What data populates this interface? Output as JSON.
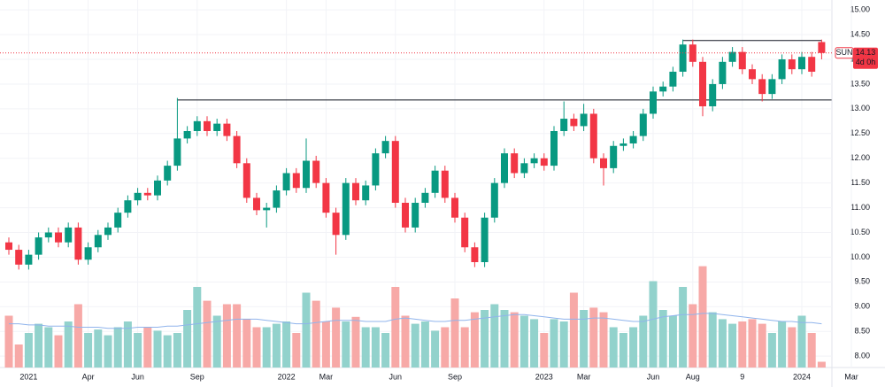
{
  "chart_data": {
    "type": "candlestick",
    "categories": [
      null,
      null,
      "2021",
      null,
      null,
      null,
      null,
      null,
      "Apr",
      null,
      null,
      null,
      null,
      "Jun",
      null,
      null,
      null,
      null,
      null,
      "Sep",
      null,
      null,
      null,
      null,
      null,
      null,
      null,
      null,
      "2022",
      null,
      null,
      null,
      "Mar",
      null,
      null,
      null,
      null,
      null,
      null,
      "Jun",
      null,
      null,
      null,
      null,
      null,
      "Sep",
      null,
      null,
      null,
      null,
      null,
      null,
      null,
      null,
      "2023",
      null,
      null,
      null,
      "Mar",
      null,
      null,
      null,
      null,
      null,
      null,
      "Jun",
      null,
      null,
      null,
      "Aug",
      null,
      null,
      null,
      null,
      "9",
      null,
      null,
      null,
      null,
      null,
      "2024",
      null,
      null,
      null,
      null,
      "Mar"
    ],
    "open": [
      10.3,
      10.15,
      9.85,
      10.05,
      10.4,
      10.5,
      10.3,
      10.6,
      9.95,
      10.2,
      10.45,
      10.6,
      10.9,
      11.15,
      11.3,
      11.25,
      11.55,
      11.85,
      12.4,
      12.55,
      12.75,
      12.55,
      12.7,
      12.45,
      11.9,
      11.2,
      10.95,
      11.0,
      11.35,
      11.7,
      11.4,
      11.95,
      11.5,
      10.9,
      10.45,
      11.5,
      11.15,
      11.45,
      12.1,
      12.35,
      11.1,
      10.6,
      11.1,
      11.3,
      11.75,
      11.2,
      10.8,
      10.2,
      9.9,
      10.8,
      11.5,
      12.1,
      11.7,
      11.9,
      12.0,
      11.85,
      12.55,
      12.8,
      12.65,
      12.9,
      12.0,
      11.8,
      12.25,
      12.3,
      12.45,
      12.9,
      13.35,
      13.45,
      13.75,
      14.3,
      13.95,
      13.05,
      13.5,
      13.95,
      14.15,
      13.8,
      13.6,
      13.3,
      13.6,
      14.0,
      13.8,
      14.05,
      14.35,
      null,
      null,
      null
    ],
    "high": [
      10.4,
      10.25,
      10.15,
      10.5,
      10.6,
      10.6,
      10.7,
      10.7,
      10.3,
      10.55,
      10.7,
      11.0,
      11.25,
      11.4,
      11.4,
      11.65,
      11.95,
      13.22,
      12.65,
      12.85,
      12.85,
      12.8,
      12.8,
      12.55,
      12.0,
      11.3,
      11.1,
      11.45,
      11.8,
      11.8,
      12.4,
      12.05,
      11.6,
      11.0,
      11.6,
      11.6,
      11.55,
      12.2,
      12.45,
      12.45,
      11.2,
      11.2,
      11.4,
      11.85,
      11.85,
      11.3,
      10.9,
      10.3,
      10.9,
      11.6,
      12.2,
      12.2,
      12.0,
      12.1,
      12.1,
      12.65,
      13.15,
      12.9,
      13.1,
      13.0,
      12.1,
      12.35,
      12.4,
      12.55,
      13.0,
      13.45,
      13.55,
      13.85,
      14.4,
      14.4,
      14.05,
      13.6,
      14.05,
      14.25,
      14.25,
      13.9,
      13.7,
      13.7,
      14.1,
      14.1,
      14.15,
      14.15,
      14.4,
      null,
      null,
      null
    ],
    "low": [
      10.05,
      9.75,
      9.75,
      9.95,
      10.3,
      10.2,
      10.2,
      9.85,
      9.85,
      10.1,
      10.35,
      10.5,
      10.8,
      11.05,
      11.15,
      11.15,
      11.45,
      11.75,
      12.3,
      12.45,
      12.45,
      12.45,
      12.35,
      11.8,
      11.1,
      10.85,
      10.6,
      10.9,
      11.25,
      11.3,
      11.3,
      11.4,
      10.8,
      10.05,
      10.35,
      11.05,
      11.05,
      11.35,
      12.0,
      11.0,
      10.5,
      10.5,
      11.0,
      11.2,
      11.1,
      10.7,
      10.1,
      9.8,
      9.8,
      10.7,
      11.4,
      11.6,
      11.6,
      11.8,
      11.75,
      11.75,
      12.45,
      12.55,
      12.55,
      11.9,
      11.45,
      11.7,
      12.15,
      12.2,
      12.35,
      12.8,
      13.25,
      13.35,
      13.65,
      13.85,
      12.85,
      12.95,
      13.4,
      13.85,
      13.7,
      13.5,
      13.15,
      13.2,
      13.5,
      13.7,
      13.7,
      13.65,
      14.0,
      null,
      null,
      null
    ],
    "close": [
      10.15,
      9.85,
      10.05,
      10.4,
      10.5,
      10.3,
      10.6,
      9.95,
      10.2,
      10.45,
      10.6,
      10.9,
      11.15,
      11.3,
      11.25,
      11.55,
      11.85,
      12.4,
      12.55,
      12.75,
      12.55,
      12.7,
      12.45,
      11.9,
      11.2,
      10.95,
      11.0,
      11.35,
      11.7,
      11.4,
      11.95,
      11.5,
      10.9,
      10.45,
      11.5,
      11.15,
      11.45,
      12.1,
      12.35,
      11.1,
      10.6,
      11.1,
      11.3,
      11.75,
      11.2,
      10.8,
      10.2,
      9.9,
      10.8,
      11.5,
      12.1,
      11.7,
      11.9,
      12.0,
      11.85,
      12.55,
      12.8,
      12.65,
      12.9,
      12.0,
      11.8,
      12.25,
      12.3,
      12.45,
      12.9,
      13.35,
      13.45,
      13.75,
      14.3,
      13.95,
      13.05,
      13.5,
      13.95,
      14.15,
      13.8,
      13.6,
      13.3,
      13.6,
      14.0,
      13.8,
      14.05,
      13.75,
      14.13,
      null,
      null,
      null
    ],
    "volume": [
      45,
      20,
      30,
      38,
      35,
      28,
      40,
      55,
      30,
      33,
      28,
      35,
      40,
      30,
      35,
      32,
      28,
      30,
      50,
      70,
      58,
      45,
      55,
      55,
      42,
      35,
      35,
      38,
      40,
      30,
      65,
      58,
      40,
      52,
      40,
      44,
      35,
      35,
      30,
      70,
      45,
      38,
      40,
      32,
      35,
      60,
      35,
      48,
      50,
      55,
      50,
      48,
      45,
      42,
      30,
      42,
      40,
      65,
      50,
      52,
      48,
      35,
      30,
      35,
      45,
      75,
      50,
      45,
      70,
      55,
      88,
      48,
      42,
      38,
      40,
      42,
      38,
      30,
      40,
      35,
      45,
      30,
      5,
      null,
      null,
      null
    ],
    "volume_ma": [
      38,
      38,
      37,
      37,
      36,
      36,
      36,
      35,
      35,
      35,
      34,
      34,
      34,
      35,
      35,
      35,
      36,
      36,
      37,
      38,
      39,
      40,
      41,
      42,
      42,
      42,
      41,
      40,
      39,
      38,
      38,
      39,
      40,
      41,
      41,
      41,
      40,
      40,
      40,
      42,
      43,
      42,
      41,
      40,
      40,
      41,
      41,
      42,
      43,
      44,
      45,
      46,
      46,
      45,
      44,
      43,
      42,
      42,
      42,
      43,
      43,
      42,
      41,
      40,
      40,
      42,
      44,
      45,
      46,
      46,
      47,
      47,
      46,
      45,
      44,
      43,
      42,
      41,
      40,
      40,
      39,
      39,
      38,
      null,
      null,
      null
    ],
    "volume_lim": [
      0,
      100
    ],
    "up_color": "#089981",
    "down_color": "#f23645",
    "up_volume_color": "#92d2cc",
    "down_volume_color": "#f7a9a7",
    "volume_ma_color": "#90b4ec",
    "ylim": [
      7.68,
      15.2
    ],
    "yticks": [
      {
        "value": 8,
        "label": "8.00"
      },
      {
        "value": 8.5,
        "label": "8.50"
      },
      {
        "value": 9,
        "label": "9.00"
      },
      {
        "value": 9.5,
        "label": "9.50"
      },
      {
        "value": 10,
        "label": "10.00"
      },
      {
        "value": 10.5,
        "label": "10.50"
      },
      {
        "value": 11,
        "label": "11.00"
      },
      {
        "value": 11.5,
        "label": "11.50"
      },
      {
        "value": 12,
        "label": "12.00"
      },
      {
        "value": 12.5,
        "label": "12.50"
      },
      {
        "value": 13,
        "label": "13.00"
      },
      {
        "value": 13.5,
        "label": "13.50"
      },
      {
        "value": 14,
        "label": "14.00"
      },
      {
        "value": 14.5,
        "label": "14.50"
      },
      {
        "value": 15,
        "label": "15.00"
      }
    ],
    "grid": true,
    "levels": [
      {
        "value": 13.18,
        "start": 17,
        "end": 83
      },
      {
        "value": 14.38,
        "start": 68,
        "end": 82
      }
    ],
    "last_price": {
      "symbol": "SUN",
      "value": 14.13,
      "countdown": "4d 0h"
    }
  }
}
